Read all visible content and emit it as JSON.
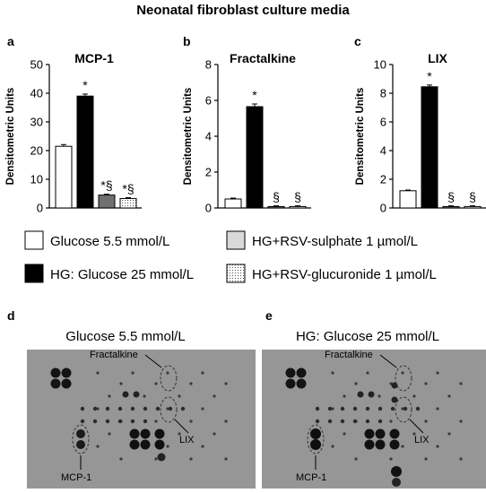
{
  "figure": {
    "title": "Neonatal fibroblast culture media",
    "panel_letters": [
      "a",
      "b",
      "c",
      "d",
      "e"
    ]
  },
  "chart_data": [
    {
      "type": "bar",
      "panel": "a",
      "title": "MCP-1",
      "ylabel": "Densitometric Units",
      "ylim": [
        0,
        50
      ],
      "yticks": [
        "0",
        "10",
        "20",
        "30",
        "40",
        "50"
      ],
      "categories": [
        "Glucose 5.5 mmol/L",
        "HG: Glucose 25 mmol/L",
        "HG+RSV-sulphate 1 µmol/L",
        "HG+RSV-glucuronide 1 µmol/L"
      ],
      "values": [
        21.5,
        39.0,
        4.5,
        3.3
      ],
      "errors": [
        0.6,
        0.7,
        0.3,
        0.3
      ],
      "annotations": [
        "",
        "*",
        "*§",
        "*§"
      ]
    },
    {
      "type": "bar",
      "panel": "b",
      "title": "Fractalkine",
      "ylabel": "Densitometric Units",
      "ylim": [
        0,
        8
      ],
      "yticks": [
        "0",
        "2",
        "4",
        "6",
        "8"
      ],
      "categories": [
        "Glucose 5.5 mmol/L",
        "HG: Glucose 25 mmol/L",
        "HG+RSV-sulphate 1 µmol/L",
        "HG+RSV-glucuronide 1 µmol/L"
      ],
      "values": [
        0.5,
        5.65,
        0.08,
        0.08
      ],
      "errors": [
        0.05,
        0.15,
        0.04,
        0.04
      ],
      "annotations": [
        "",
        "*",
        "§",
        "§"
      ]
    },
    {
      "type": "bar",
      "panel": "c",
      "title": "LIX",
      "ylabel": "Densitometric Units",
      "ylim": [
        0,
        10
      ],
      "yticks": [
        "0",
        "2",
        "4",
        "6",
        "8",
        "10"
      ],
      "categories": [
        "Glucose 5.5 mmol/L",
        "HG: Glucose 25 mmol/L",
        "HG+RSV-sulphate 1 µmol/L",
        "HG+RSV-glucuronide 1 µmol/L"
      ],
      "values": [
        1.2,
        8.45,
        0.1,
        0.1
      ],
      "errors": [
        0.05,
        0.12,
        0.05,
        0.05
      ],
      "annotations": [
        "",
        "*",
        "§",
        "§"
      ]
    }
  ],
  "legend": [
    {
      "label": "Glucose 5.5 mmol/L",
      "fill": "#ffffff",
      "pattern": "none"
    },
    {
      "label": "HG+RSV-sulphate 1 µmol/L",
      "fill": "#d9d9d9",
      "pattern": "none"
    },
    {
      "label": "HG: Glucose 25 mmol/L",
      "fill": "#000000",
      "pattern": "none"
    },
    {
      "label": "HG+RSV-glucuronide 1 µmol/L",
      "fill": "#ffffff",
      "pattern": "dots"
    }
  ],
  "colors": {
    "bar_glucose": "#ffffff",
    "bar_hg": "#000000",
    "bar_sulphate": "#707070",
    "bar_glucuronide": "#ffffff",
    "blot_background": "#9a9a9a"
  },
  "blots": [
    {
      "panel": "d",
      "title": "Glucose 5.5 mmol/L",
      "labels": {
        "fractalkine": "Fractalkine",
        "lix": "LIX",
        "mcp1": "MCP-1"
      }
    },
    {
      "panel": "e",
      "title": "HG: Glucose 25 mmol/L",
      "labels": {
        "fractalkine": "Fractalkine",
        "lix": "LIX",
        "mcp1": "MCP-1"
      }
    }
  ]
}
